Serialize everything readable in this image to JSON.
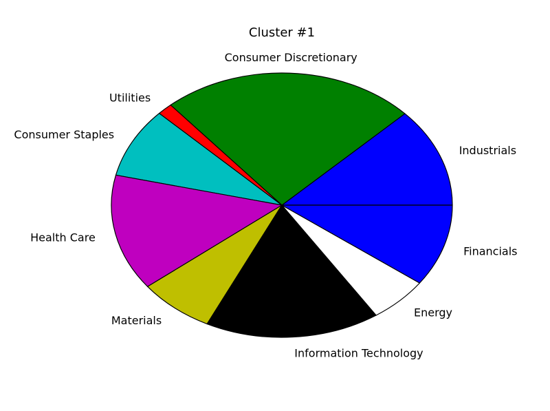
{
  "chart_data": {
    "type": "pie",
    "title": "Cluster #1",
    "start_angle_deg": 0,
    "direction": "counterclockwise",
    "slices": [
      {
        "label": "Industrials",
        "value": 12.5,
        "color": "#0000ff"
      },
      {
        "label": "Consumer Discretionary",
        "value": 24.8,
        "color": "#008000"
      },
      {
        "label": "Utilities",
        "value": 1.5,
        "color": "#ff0000"
      },
      {
        "label": "Consumer Staples",
        "value": 8.8,
        "color": "#00bfbf"
      },
      {
        "label": "Health Care",
        "value": 14.6,
        "color": "#bf00bf"
      },
      {
        "label": "Materials",
        "value": 7.4,
        "color": "#bfbf00"
      },
      {
        "label": "Information Technology",
        "value": 17.0,
        "color": "#000000"
      },
      {
        "label": "Energy",
        "value": 5.8,
        "color": "#ffffff"
      },
      {
        "label": "Financials",
        "value": 10.3,
        "color": "#0000ff"
      }
    ]
  }
}
